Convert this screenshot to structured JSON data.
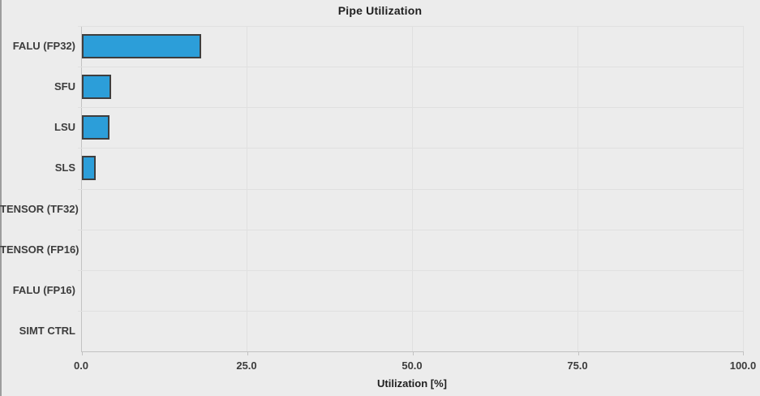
{
  "chart_data": {
    "type": "bar",
    "orientation": "horizontal",
    "title": "Pipe Utilization",
    "categories": [
      "FALU (FP32)",
      "SFU",
      "LSU",
      "SLS",
      "TENSOR (TF32)",
      "TENSOR (FP16)",
      "FALU (FP16)",
      "SIMT CTRL"
    ],
    "values": [
      18.0,
      4.4,
      4.2,
      2.1,
      0.0,
      0.0,
      0.0,
      0.0
    ],
    "xlabel": "Utilization [%]",
    "ylabel": "",
    "xlim": [
      0,
      100
    ],
    "xtick_values": [
      0,
      25,
      50,
      75,
      100
    ],
    "xtick_labels": [
      "0.0",
      "25.0",
      "50.0",
      "75.0",
      "100.0"
    ],
    "grid": true,
    "legend": "none",
    "colors": {
      "bar_fill": "#2C9ED9",
      "bar_border": "#3E3E3E",
      "background": "#ECECEC",
      "grid_line": "#E0E0E0",
      "axis_line": "#C2C2C2",
      "title_text": "#1F1F1F",
      "label_text": "#3C3C3C"
    }
  }
}
